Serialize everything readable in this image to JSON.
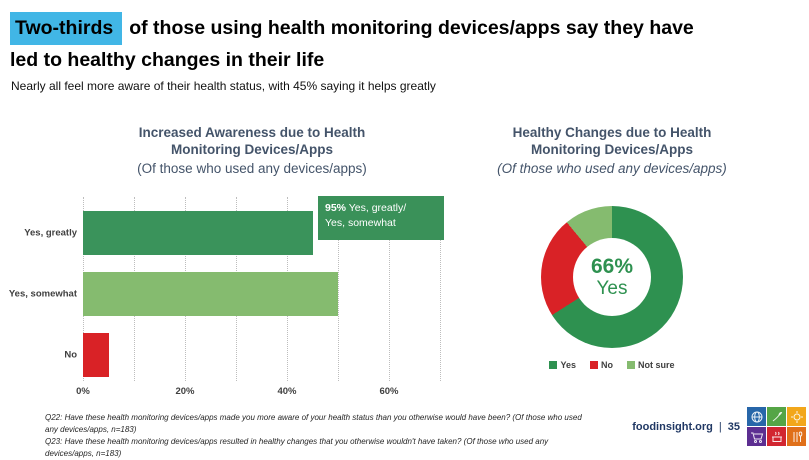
{
  "slide_title": {
    "highlight": "Two-thirds",
    "highlight_color": "#41B6E6",
    "line1_rest": "of those using health monitoring devices/apps say they have",
    "line2": "led to healthy changes in their life"
  },
  "subtitle": "Nearly all feel more aware of their health status, with 45% saying it helps greatly",
  "chart_data": [
    {
      "type": "bar",
      "orientation": "horizontal",
      "title_line1": "Increased Awareness due to Health",
      "title_line2": "Monitoring Devices/Apps",
      "subtitle": "(Of those who used any devices/apps)",
      "categories": [
        "Yes, greatly",
        "Yes, somewhat",
        "No"
      ],
      "values": [
        45,
        50,
        5
      ],
      "colors": [
        "#3A935B",
        "#85BB6F",
        "#D92226"
      ],
      "xlabel": "",
      "ylabel": "",
      "xlim": [
        0,
        70
      ],
      "xmax": 70,
      "grid": "dotted-vertical",
      "gridlines_pct": [
        0,
        10,
        20,
        30,
        40,
        50,
        60,
        70
      ],
      "ticks": [
        {
          "label": "0%",
          "pos": 0
        },
        {
          "label": "20%",
          "pos": 20
        },
        {
          "label": "40%",
          "pos": 40
        },
        {
          "label": "60%",
          "pos": 60
        }
      ],
      "callout": {
        "pct": "95%",
        "line1_rest": "Yes, greatly/",
        "line2": "Yes, somewhat",
        "bg": "#3A9159"
      }
    },
    {
      "type": "pie",
      "donut": true,
      "title_line1": "Healthy Changes due to Health",
      "title_line2": "Monitoring Devices/Apps",
      "subtitle": "(Of those who used any devices/apps)",
      "start_angle_deg": 0,
      "slices": [
        {
          "label": "Yes",
          "value": 66,
          "color": "#2E9150"
        },
        {
          "label": "No",
          "value": 23,
          "color": "#D92226"
        },
        {
          "label": "Not sure",
          "value": 11,
          "color": "#85BB6F"
        }
      ],
      "center_pct": "66%",
      "center_label": "Yes",
      "legend_position": "bottom"
    }
  ],
  "footer": {
    "questions": [
      "Q22: Have these health monitoring devices/apps made you more aware of your health status than you otherwise would have been? (Of those who used any devices/apps, n=183)",
      "Q23: Have these health monitoring devices/apps resulted in healthy changes that you otherwise wouldn't have taken? (Of those who used any devices/apps, n=183)"
    ],
    "site": "foodinsight.org",
    "separator": "|",
    "page_number": "35",
    "logo_tiles": [
      {
        "name": "globe",
        "color": "#2766A9"
      },
      {
        "name": "agriculture",
        "color": "#55A546"
      },
      {
        "name": "sun",
        "color": "#F2A71B"
      },
      {
        "name": "shopping-cart",
        "color": "#5C2E91"
      },
      {
        "name": "cooking-pot",
        "color": "#D22630"
      },
      {
        "name": "utensils",
        "color": "#E0701A"
      }
    ]
  },
  "theme": {
    "chart_title_color": "#44546A",
    "axis_text_color": "#404040",
    "brand_text_color": "#203864"
  }
}
